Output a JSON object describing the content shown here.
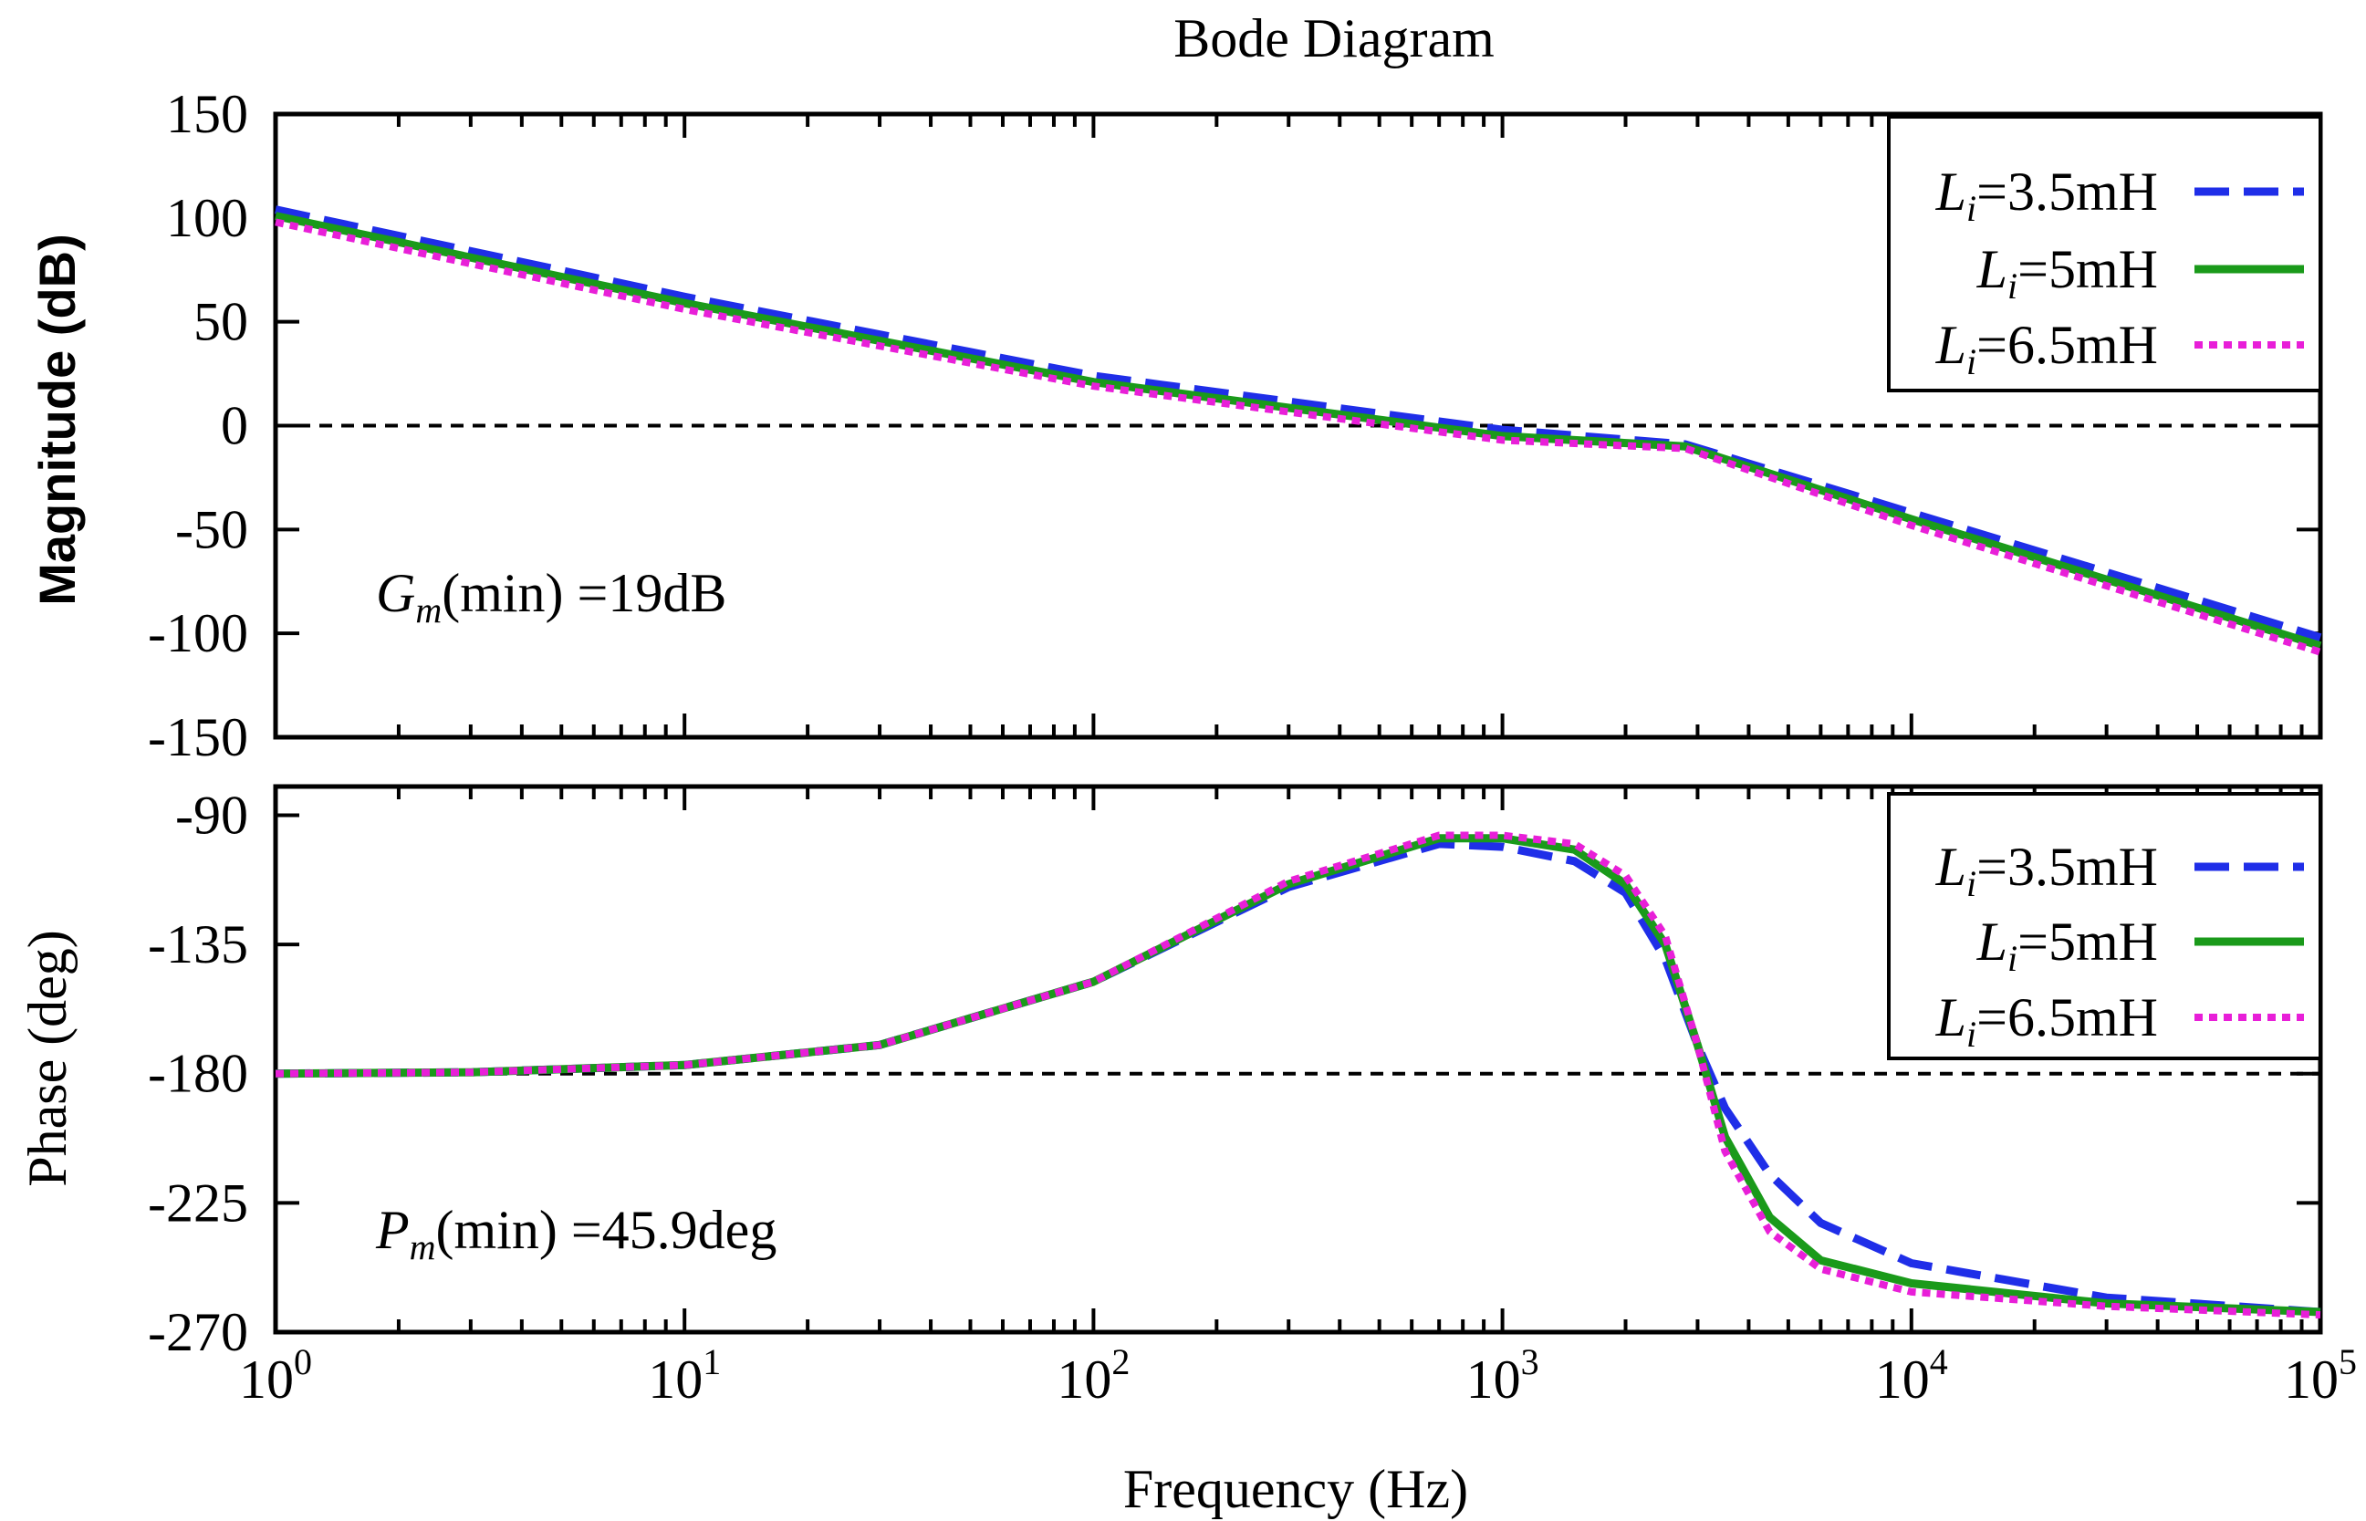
{
  "title": "Bode Diagram",
  "colors": {
    "axis": "#000000",
    "reference": "#000000",
    "series_3_5": "#1f2ee8",
    "series_5": "#1a9a1a",
    "series_6_5": "#e81fd8"
  },
  "chart_data": [
    {
      "type": "line",
      "name": "magnitude",
      "ylabel": "Magnitude (dB)",
      "xscale": "log",
      "xlim": [
        1,
        100000
      ],
      "ylim": [
        -150,
        150
      ],
      "yticks": [
        "150",
        "100",
        "50",
        "0",
        "-50",
        "-100",
        "-150"
      ],
      "reference_line": 0,
      "annotation": {
        "symbol": "G",
        "sub": "m",
        "text": "(min) =19dB"
      },
      "legend_position": "top-right",
      "series": [
        {
          "name": "3.5mH",
          "style": "dashed",
          "x": [
            1,
            10,
            100,
            1000,
            2800,
            10000,
            100000
          ],
          "values": [
            104,
            62,
            24,
            -2,
            -9,
            -42,
            -102
          ]
        },
        {
          "name": "5mH",
          "style": "solid",
          "x": [
            1,
            10,
            100,
            1000,
            2800,
            10000,
            100000
          ],
          "values": [
            101,
            59,
            21,
            -5,
            -10,
            -45,
            -106
          ]
        },
        {
          "name": "6.5mH",
          "style": "dotted",
          "x": [
            1,
            10,
            100,
            1000,
            2800,
            10000,
            100000
          ],
          "values": [
            98,
            56,
            19,
            -7,
            -11,
            -48,
            -109
          ]
        }
      ]
    },
    {
      "type": "line",
      "name": "phase",
      "xlabel": "Frequency (Hz)",
      "ylabel": "Phase (deg)",
      "xscale": "log",
      "xlim": [
        1,
        100000
      ],
      "ylim": [
        -270,
        -80
      ],
      "yticks": [
        "-90",
        "-135",
        "-180",
        "-225",
        "-270"
      ],
      "reference_line": -180,
      "annotation": {
        "symbol": "P",
        "sub": "m",
        "text": "(min) =45.9deg"
      },
      "legend_position": "top-right",
      "series": [
        {
          "name": "3.5mH",
          "style": "dashed",
          "x": [
            1,
            3,
            10,
            30,
            100,
            300,
            700,
            1000,
            1500,
            2000,
            2500,
            3000,
            3500,
            4500,
            6000,
            10000,
            30000,
            100000
          ],
          "values": [
            -180,
            -179.5,
            -177,
            -170,
            -148,
            -115,
            -100,
            -101,
            -106,
            -117,
            -140,
            -170,
            -192,
            -215,
            -232,
            -246,
            -258,
            -263
          ]
        },
        {
          "name": "5mH",
          "style": "solid",
          "x": [
            1,
            3,
            10,
            30,
            100,
            300,
            700,
            1000,
            1500,
            2000,
            2500,
            3000,
            3500,
            4500,
            6000,
            10000,
            30000,
            100000
          ],
          "values": [
            -180,
            -179.5,
            -177,
            -170,
            -148,
            -114,
            -98,
            -98,
            -102,
            -114,
            -135,
            -170,
            -202,
            -230,
            -245,
            -253,
            -260,
            -263
          ]
        },
        {
          "name": "6.5mH",
          "style": "dotted",
          "x": [
            1,
            3,
            10,
            30,
            100,
            300,
            700,
            1000,
            1500,
            2000,
            2500,
            3000,
            3500,
            4500,
            6000,
            10000,
            30000,
            100000
          ],
          "values": [
            -180,
            -179.5,
            -177,
            -170,
            -148,
            -113,
            -97,
            -97,
            -100,
            -111,
            -132,
            -170,
            -207,
            -235,
            -248,
            -256,
            -261,
            -264
          ]
        }
      ]
    }
  ],
  "x_ticks": [
    {
      "base": "10",
      "exp": "0"
    },
    {
      "base": "10",
      "exp": "1"
    },
    {
      "base": "10",
      "exp": "2"
    },
    {
      "base": "10",
      "exp": "3"
    },
    {
      "base": "10",
      "exp": "4"
    },
    {
      "base": "10",
      "exp": "5"
    }
  ],
  "legend": {
    "symbol": "L",
    "sub": "i",
    "entries": [
      "=3.5mH",
      "=5mH",
      "=6.5mH"
    ]
  }
}
